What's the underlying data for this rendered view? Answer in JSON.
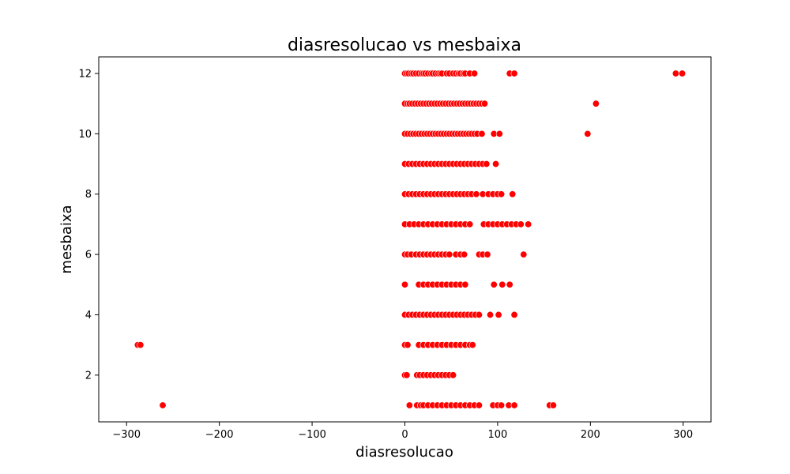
{
  "chart_data": {
    "type": "scatter",
    "title": "diasresolucao vs mesbaixa",
    "xlabel": "diasresolucao",
    "ylabel": "mesbaixa",
    "xlim": [
      -330,
      330
    ],
    "ylim": [
      0.45,
      12.55
    ],
    "xticks": [
      -300,
      -200,
      -100,
      0,
      100,
      200,
      300
    ],
    "yticks": [
      2,
      4,
      6,
      8,
      10,
      12
    ],
    "grid": false,
    "marker_color": "#ff0000",
    "marker_edge_color": "#ffffff",
    "points_by_month": {
      "12": [
        0,
        2,
        4,
        7,
        9,
        12,
        15,
        18,
        20,
        22,
        25,
        28,
        30,
        33,
        36,
        38,
        40,
        45,
        48,
        52,
        55,
        58,
        60,
        63,
        65,
        70,
        75,
        113,
        118,
        292,
        299
      ],
      "11": [
        0,
        3,
        5,
        8,
        11,
        14,
        17,
        20,
        23,
        26,
        29,
        32,
        35,
        38,
        41,
        44,
        47,
        50,
        53,
        56,
        59,
        62,
        65,
        68,
        71,
        74,
        77,
        80,
        83,
        86,
        206
      ],
      "10": [
        0,
        3,
        6,
        9,
        12,
        15,
        18,
        21,
        24,
        27,
        30,
        33,
        36,
        39,
        42,
        45,
        48,
        51,
        54,
        57,
        60,
        63,
        66,
        69,
        72,
        75,
        78,
        83,
        96,
        102,
        197
      ],
      "9": [
        0,
        4,
        8,
        12,
        16,
        20,
        24,
        28,
        32,
        36,
        40,
        44,
        48,
        52,
        56,
        60,
        64,
        68,
        72,
        76,
        80,
        84,
        88,
        98
      ],
      "8": [
        0,
        4,
        8,
        12,
        16,
        20,
        24,
        28,
        32,
        36,
        40,
        44,
        48,
        52,
        56,
        60,
        64,
        68,
        72,
        77,
        84,
        90,
        95,
        100,
        104,
        116
      ],
      "7": [
        0,
        5,
        10,
        15,
        20,
        25,
        30,
        35,
        40,
        45,
        50,
        55,
        60,
        65,
        70,
        85,
        90,
        95,
        100,
        105,
        110,
        115,
        120,
        125,
        133
      ],
      "6": [
        0,
        3,
        7,
        12,
        16,
        20,
        24,
        28,
        32,
        36,
        40,
        44,
        48,
        55,
        60,
        64,
        80,
        84,
        89,
        128
      ],
      "5": [
        0,
        15,
        20,
        25,
        30,
        35,
        40,
        45,
        50,
        55,
        60,
        65,
        96,
        105,
        113
      ],
      "4": [
        0,
        4,
        8,
        12,
        16,
        20,
        24,
        28,
        32,
        36,
        40,
        44,
        48,
        52,
        56,
        60,
        64,
        68,
        72,
        76,
        80,
        92,
        101,
        118
      ],
      "3": [
        -288,
        -285,
        0,
        3,
        15,
        20,
        25,
        30,
        35,
        40,
        45,
        50,
        55,
        60,
        65,
        70,
        73
      ],
      "2": [
        0,
        2,
        13,
        16,
        20,
        24,
        28,
        32,
        36,
        40,
        44,
        48,
        52
      ],
      "1": [
        -261,
        5,
        13,
        17,
        20,
        25,
        30,
        35,
        40,
        45,
        50,
        55,
        60,
        65,
        70,
        75,
        80,
        95,
        100,
        104,
        112,
        118,
        156,
        160
      ]
    }
  }
}
